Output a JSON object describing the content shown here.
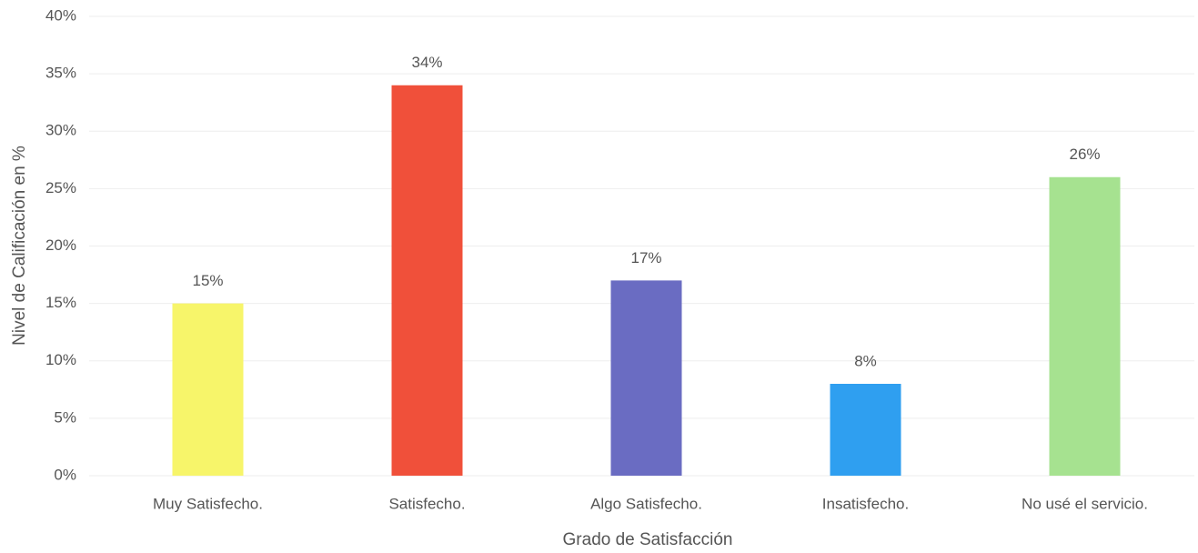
{
  "chart_data": {
    "type": "bar",
    "categories": [
      "Muy Satisfecho.",
      "Satisfecho.",
      "Algo Satisfecho.",
      "Insatisfecho.",
      "No usé el servicio."
    ],
    "values": [
      15,
      34,
      17,
      8,
      26
    ],
    "value_labels": [
      "15%",
      "34%",
      "17%",
      "8%",
      "26%"
    ],
    "colors": [
      "#f7f56a",
      "#f0503a",
      "#6a6cc2",
      "#2f9ff0",
      "#a6e290"
    ],
    "xlabel": "Grado de Satisfacción",
    "ylabel": "Nivel de Calificación en %",
    "ylim": [
      0,
      40
    ],
    "yticks": [
      {
        "value": 0,
        "label": "0%"
      },
      {
        "value": 5,
        "label": "5%"
      },
      {
        "value": 10,
        "label": "10%"
      },
      {
        "value": 15,
        "label": "15%"
      },
      {
        "value": 20,
        "label": "20%"
      },
      {
        "value": 25,
        "label": "25%"
      },
      {
        "value": 30,
        "label": "30%"
      },
      {
        "value": 35,
        "label": "35%"
      },
      {
        "value": 40,
        "label": "40%"
      }
    ],
    "grid": true
  }
}
